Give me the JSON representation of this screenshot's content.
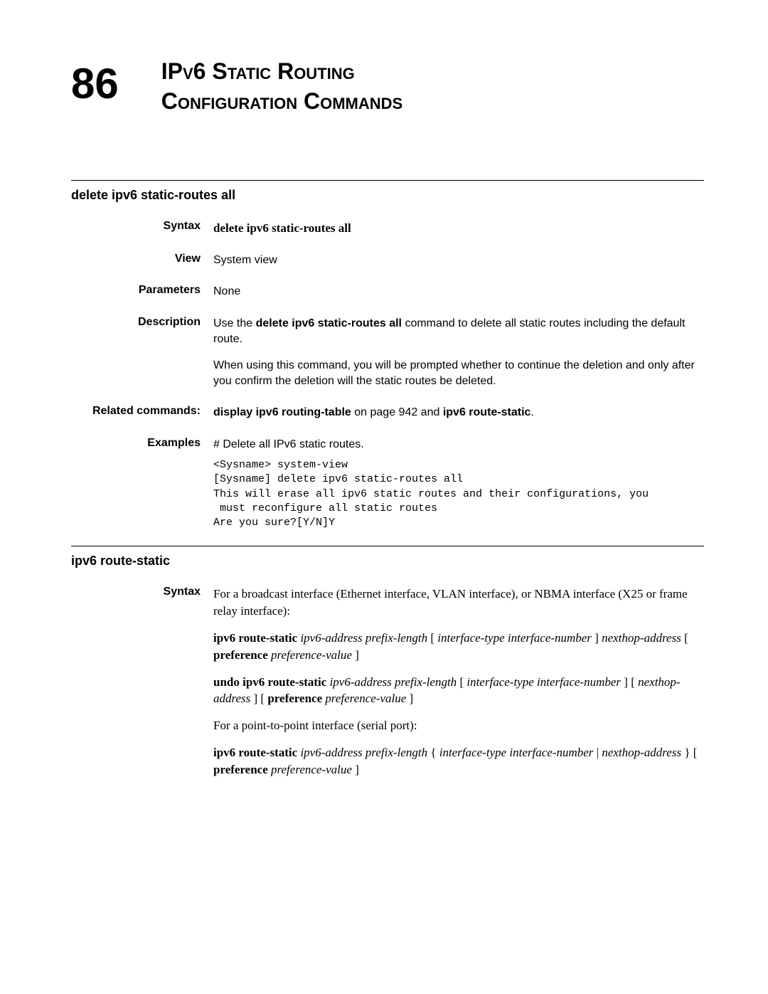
{
  "chapter": {
    "number": "86",
    "title_line1": "IPv6 Static Routing",
    "title_line2": "Configuration Commands"
  },
  "section1": {
    "title": "delete ipv6 static-routes all",
    "syntax_label": "Syntax",
    "syntax_value": "delete ipv6 static-routes all",
    "view_label": "View",
    "view_value": "System view",
    "parameters_label": "Parameters",
    "parameters_value": "None",
    "description_label": "Description",
    "description_p1_prefix": "Use the ",
    "description_p1_bold": "delete ipv6 static-routes all",
    "description_p1_suffix": " command to delete all static routes including the default route.",
    "description_p2": "When using this command, you will be prompted whether to continue the deletion and only after you confirm the deletion will the static routes be deleted.",
    "related_label": "Related commands:",
    "related_bold1": "display ipv6 routing-table",
    "related_mid": " on page 942 and ",
    "related_bold2": "ipv6 route-static",
    "related_suffix": ".",
    "examples_label": "Examples",
    "examples_intro": "# Delete all IPv6 static routes.",
    "examples_code": "<Sysname> system-view\n[Sysname] delete ipv6 static-routes all\nThis will erase all ipv6 static routes and their configurations, you\n must reconfigure all static routes\nAre you sure?[Y/N]Y"
  },
  "section2": {
    "title": "ipv6 route-static",
    "syntax_label": "Syntax",
    "intro1": "For a broadcast interface (Ethernet interface, VLAN interface), or NBMA interface (X25 or frame relay interface):",
    "form1_b1": "ipv6 route-static ",
    "form1_i1": "ipv6-address prefix-length ",
    "form1_t1": "[ ",
    "form1_i2": "interface-type interface-number ",
    "form1_t2": "] ",
    "form1_i3": "nexthop-address ",
    "form1_t3": "[ ",
    "form1_b2": "preference ",
    "form1_i4": "preference-value ",
    "form1_t4": "]",
    "form2_b1": "undo ipv6 route-static ",
    "form2_i1": "ipv6-address prefix-length ",
    "form2_t1": "[ ",
    "form2_i2": "interface-type interface-number ",
    "form2_t2": "] [ ",
    "form2_i3": "nexthop-address ",
    "form2_t3": "] [ ",
    "form2_b2": "preference ",
    "form2_i4": "preference-value ",
    "form2_t4": "]",
    "intro2": "For a point-to-point interface (serial port):",
    "form3_b1": "ipv6 route-static ",
    "form3_i1": "ipv6-address prefix-length ",
    "form3_t1": "{ ",
    "form3_i2": "interface-type interface-number ",
    "form3_t2": "| ",
    "form3_i3": "nexthop-address ",
    "form3_t3": "} [ ",
    "form3_b2": "preference ",
    "form3_i4": "preference-value ",
    "form3_t4": "]"
  }
}
